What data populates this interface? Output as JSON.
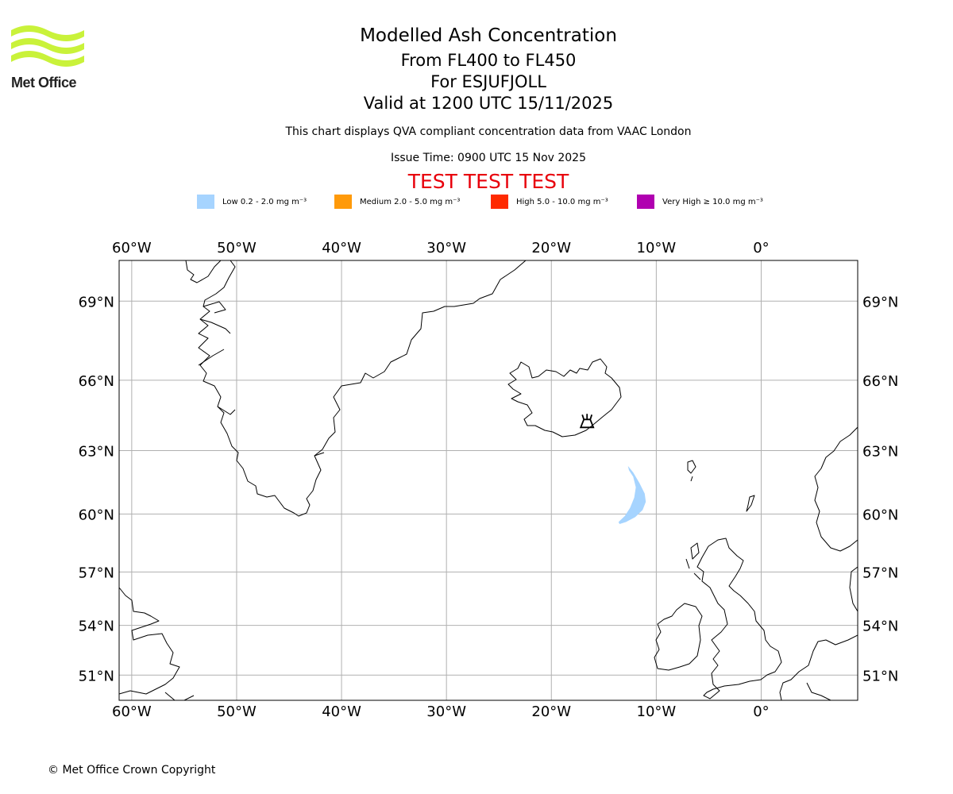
{
  "branding": {
    "org_name": "Met Office",
    "logo_color": "#c9f23a",
    "copyright": "© Met Office Crown Copyright"
  },
  "header": {
    "title": "Modelled Ash Concentration",
    "flight_levels": "From FL400 to FL450",
    "volcano": "For ESJUFJOLL",
    "valid_time": "Valid at 1200 UTC 15/11/2025",
    "description": "This chart displays QVA compliant concentration data from VAAC London",
    "issue_time": "Issue Time: 0900 UTC 15 Nov 2025",
    "test_banner": "TEST TEST TEST"
  },
  "legend": [
    {
      "label": "Low 0.2 - 2.0 mg m⁻³",
      "color": "#a6d4ff"
    },
    {
      "label": "Medium 2.0 - 5.0 mg m⁻³",
      "color": "#ff9a0a"
    },
    {
      "label": "High 5.0 - 10.0 mg m⁻³",
      "color": "#ff2a00"
    },
    {
      "label": "Very High ≥ 10.0 mg m⁻³",
      "color": "#b000b0"
    }
  ],
  "map": {
    "projection": "Mercator",
    "lon_range": [
      -61.2,
      9.2
    ],
    "lat_range": [
      49.4,
      70.4
    ],
    "lon_ticks": [
      {
        "value": -60,
        "label": "60°W"
      },
      {
        "value": -50,
        "label": "50°W"
      },
      {
        "value": -40,
        "label": "40°W"
      },
      {
        "value": -30,
        "label": "30°W"
      },
      {
        "value": -20,
        "label": "20°W"
      },
      {
        "value": -10,
        "label": "10°W"
      },
      {
        "value": 0,
        "label": "0°"
      }
    ],
    "lat_ticks": [
      {
        "value": 51,
        "label": "51°N"
      },
      {
        "value": 54,
        "label": "54°N"
      },
      {
        "value": 57,
        "label": "57°N"
      },
      {
        "value": 60,
        "label": "60°N"
      },
      {
        "value": 63,
        "label": "63°N"
      },
      {
        "value": 66,
        "label": "66°N"
      },
      {
        "value": 69,
        "label": "69°N"
      }
    ],
    "grid": true,
    "grid_color": "#b0b0b0",
    "volcano_marker": {
      "name": "ESJUFJOLL",
      "lon": -16.6,
      "lat": 64.3,
      "icon": "volcano-icon"
    },
    "ash_cloud": {
      "level": "Low",
      "color": "#a6d4ff",
      "polygon": [
        [
          -12.7,
          62.3
        ],
        [
          -12.2,
          62.0
        ],
        [
          -11.6,
          61.5
        ],
        [
          -11.1,
          61.0
        ],
        [
          -11.0,
          60.6
        ],
        [
          -11.3,
          60.2
        ],
        [
          -12.0,
          59.85
        ],
        [
          -12.9,
          59.6
        ],
        [
          -13.5,
          59.5
        ],
        [
          -13.6,
          59.6
        ],
        [
          -13.0,
          59.9
        ],
        [
          -12.5,
          60.3
        ],
        [
          -12.1,
          60.8
        ],
        [
          -11.95,
          61.3
        ],
        [
          -12.2,
          61.8
        ],
        [
          -12.6,
          62.1
        ],
        [
          -12.7,
          62.3
        ]
      ]
    }
  }
}
